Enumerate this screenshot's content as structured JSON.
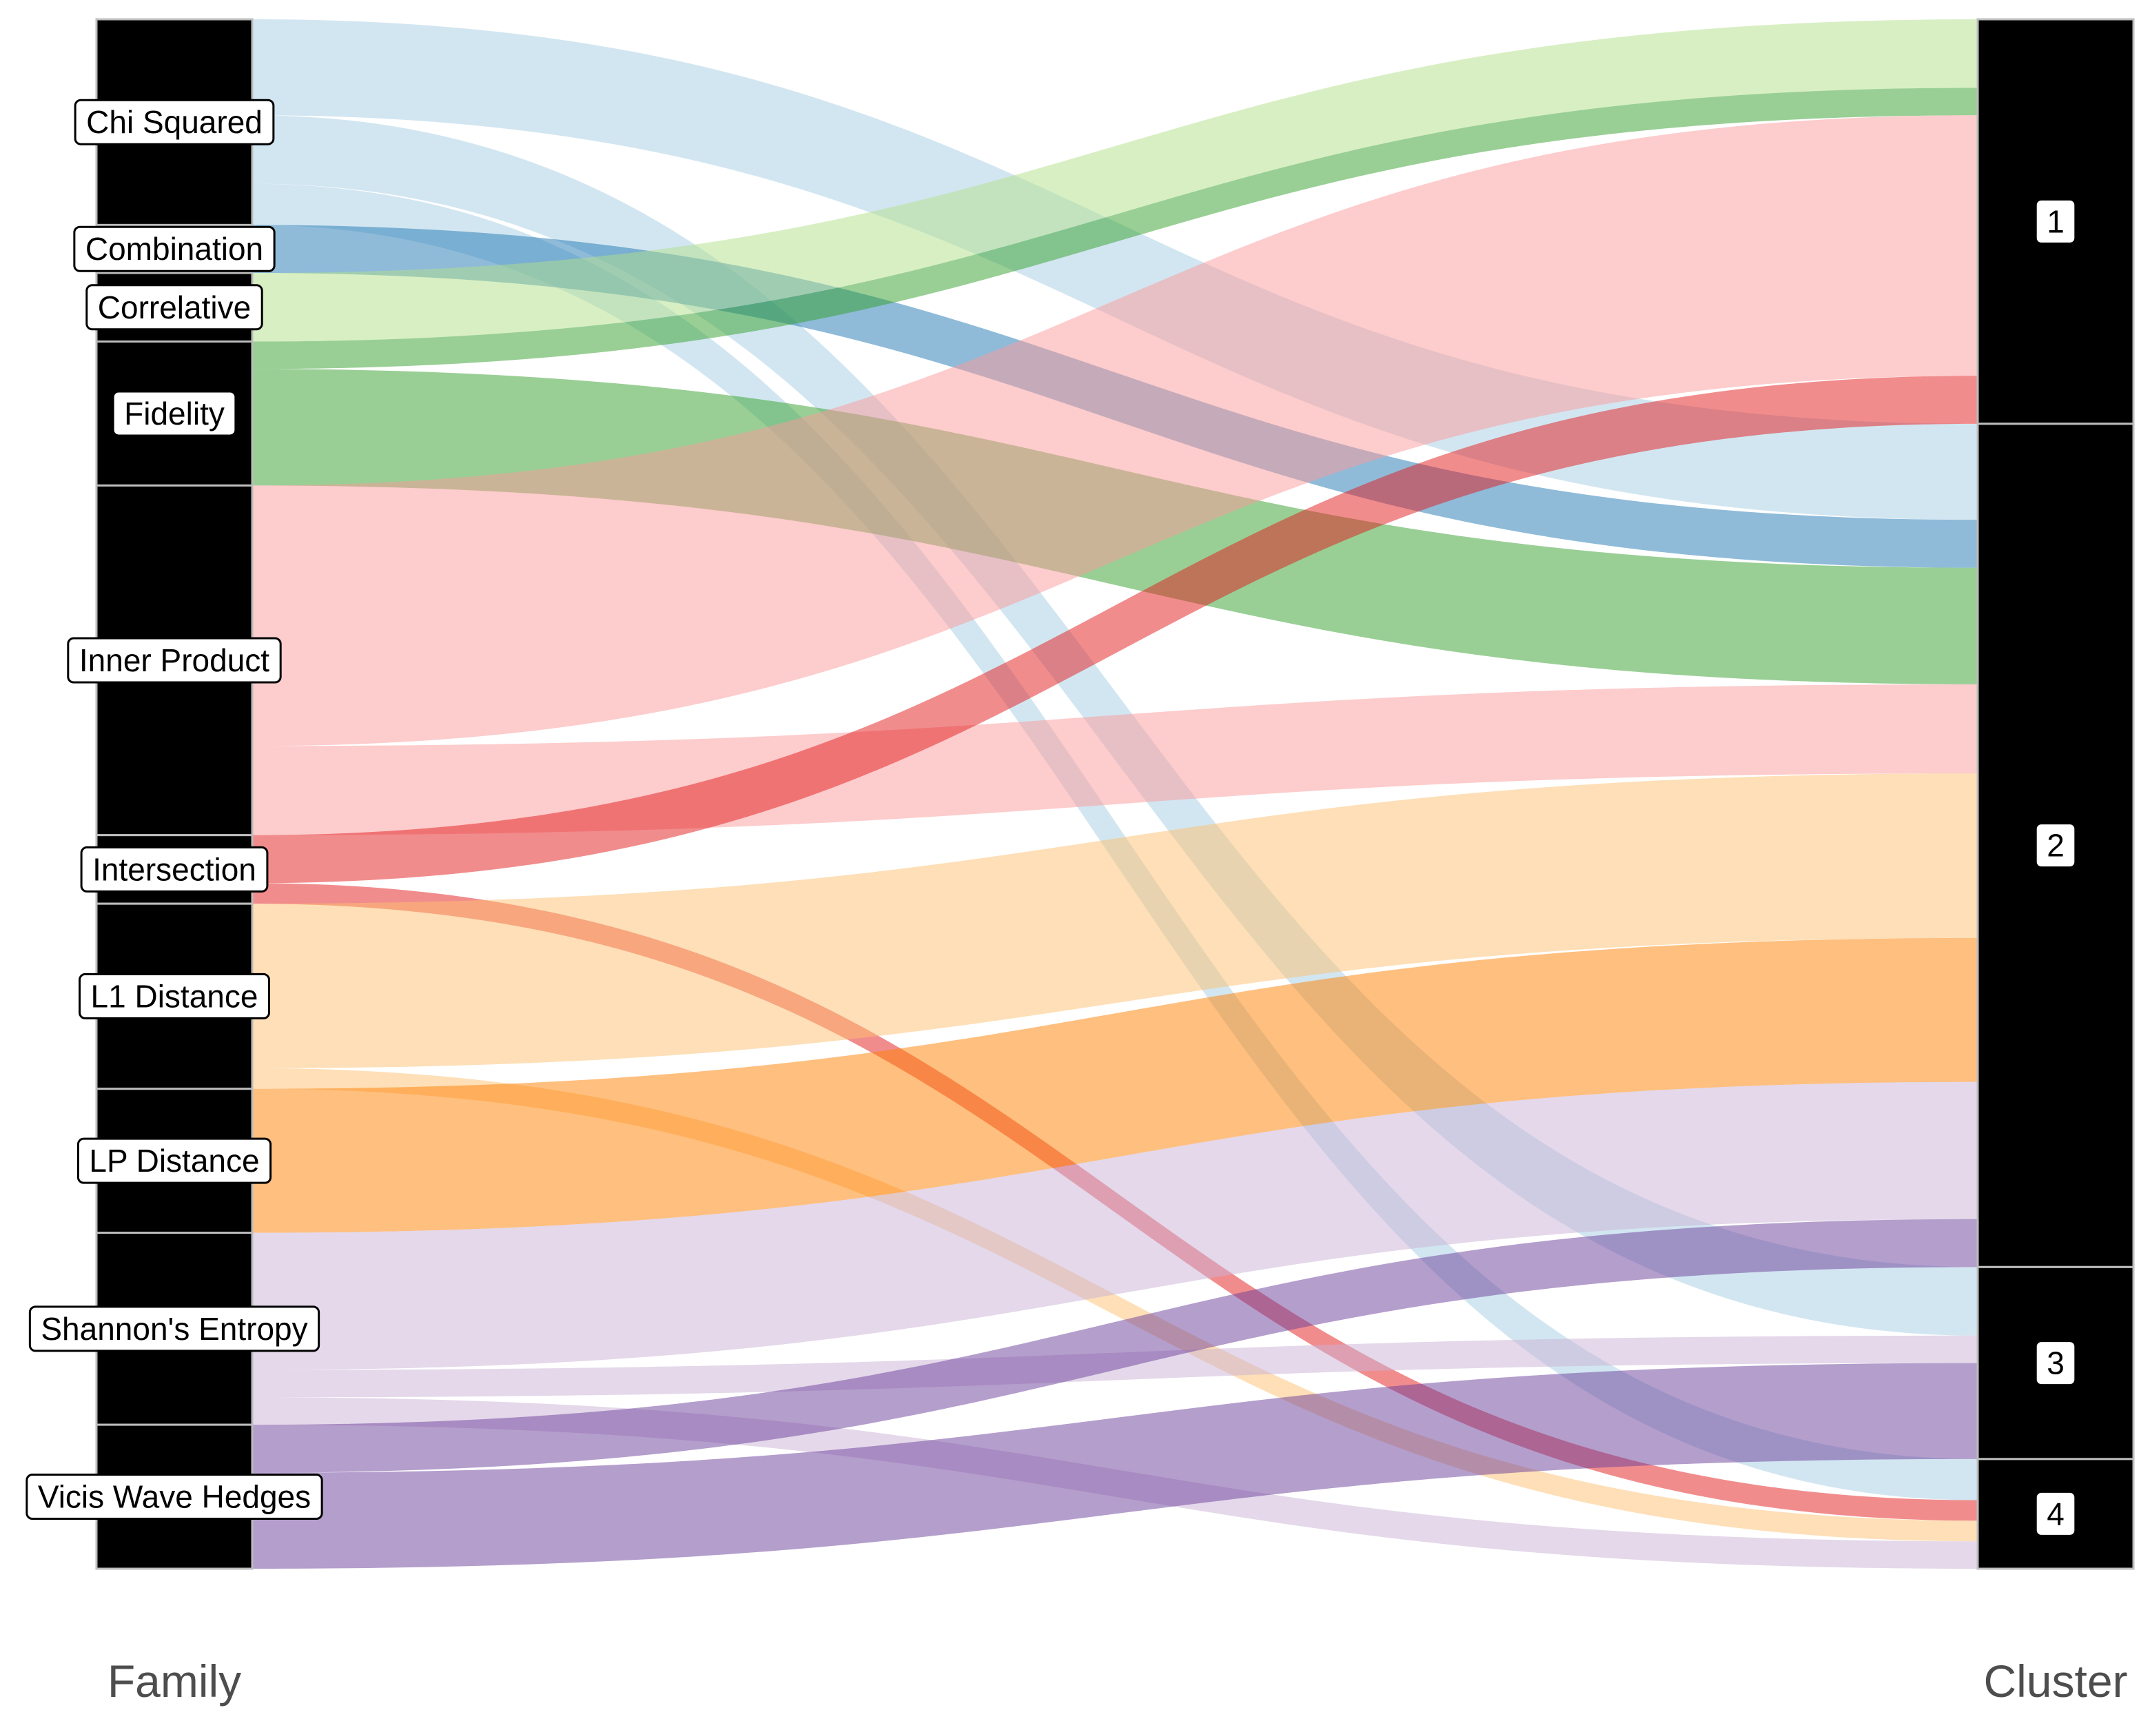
{
  "chart_data": {
    "type": "alluvial",
    "axes": [
      "Family",
      "Cluster"
    ],
    "families": [
      {
        "name": "Chi Squared",
        "color": "#a6cee3"
      },
      {
        "name": "Combination",
        "color": "#1f78b4"
      },
      {
        "name": "Correlative",
        "color": "#b2df8a"
      },
      {
        "name": "Fidelity",
        "color": "#33a02c"
      },
      {
        "name": "Inner Product",
        "color": "#fb9a99"
      },
      {
        "name": "Intersection",
        "color": "#e31a1c"
      },
      {
        "name": "L1 Distance",
        "color": "#fdbf6f"
      },
      {
        "name": "LP Distance",
        "color": "#ff7f00"
      },
      {
        "name": "Shannon's Entropy",
        "color": "#cab2d6"
      },
      {
        "name": "Vicis Wave Hedges",
        "color": "#6a3d9a"
      }
    ],
    "clusters": [
      "1",
      "2",
      "3",
      "4"
    ],
    "flows": [
      {
        "family": "Chi Squared",
        "cluster": "2",
        "value": 7
      },
      {
        "family": "Chi Squared",
        "cluster": "3",
        "value": 5
      },
      {
        "family": "Chi Squared",
        "cluster": "4",
        "value": 3
      },
      {
        "family": "Combination",
        "cluster": "2",
        "value": 3.5
      },
      {
        "family": "Correlative",
        "cluster": "1",
        "value": 5
      },
      {
        "family": "Fidelity",
        "cluster": "1",
        "value": 2
      },
      {
        "family": "Fidelity",
        "cluster": "2",
        "value": 8.5
      },
      {
        "family": "Inner Product",
        "cluster": "1",
        "value": 19
      },
      {
        "family": "Inner Product",
        "cluster": "2",
        "value": 6.5
      },
      {
        "family": "Inner Product",
        "cluster": "4",
        "value": 0
      },
      {
        "family": "Intersection",
        "cluster": "1",
        "value": 3.5
      },
      {
        "family": "Intersection",
        "cluster": "4",
        "value": 1.5
      },
      {
        "family": "L1 Distance",
        "cluster": "2",
        "value": 12
      },
      {
        "family": "L1 Distance",
        "cluster": "4",
        "value": 1.5
      },
      {
        "family": "LP Distance",
        "cluster": "2",
        "value": 10.5
      },
      {
        "family": "Shannon's Entropy",
        "cluster": "2",
        "value": 10
      },
      {
        "family": "Shannon's Entropy",
        "cluster": "3",
        "value": 2
      },
      {
        "family": "Shannon's Entropy",
        "cluster": "4",
        "value": 2
      },
      {
        "family": "Vicis Wave Hedges",
        "cluster": "2",
        "value": 3.5
      },
      {
        "family": "Vicis Wave Hedges",
        "cluster": "3",
        "value": 7
      }
    ]
  }
}
